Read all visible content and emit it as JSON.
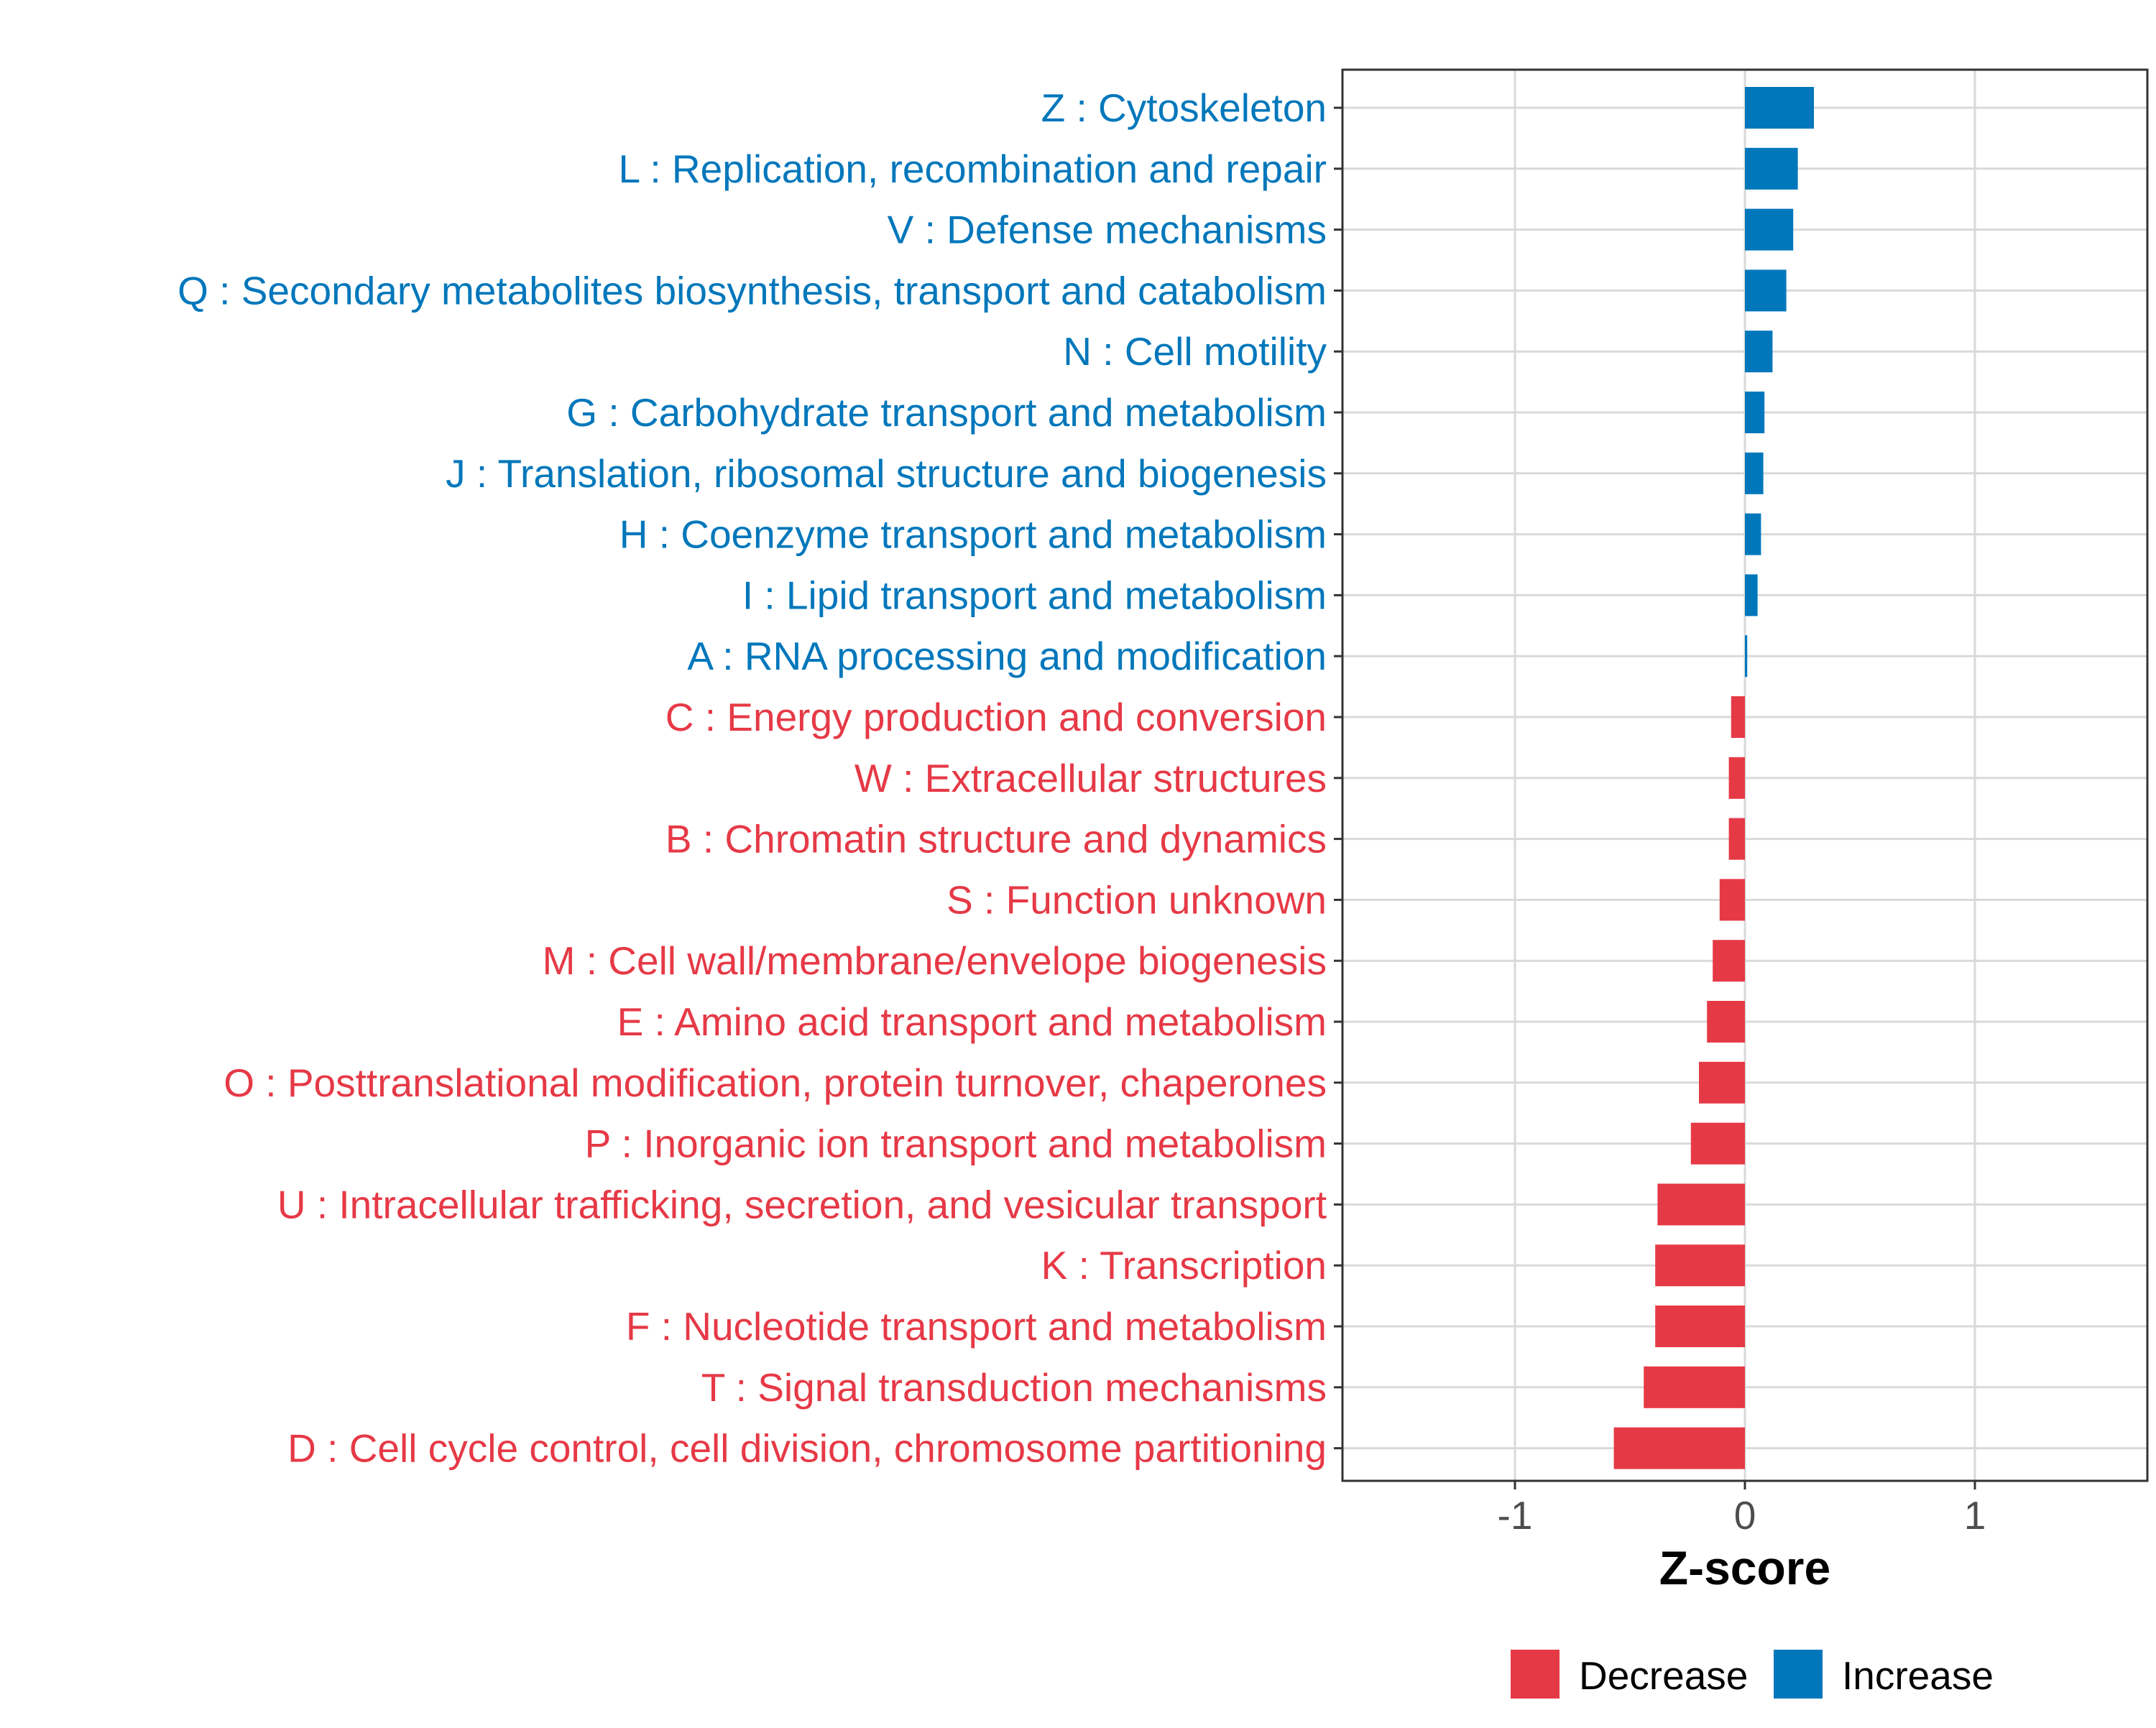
{
  "chart_data": {
    "type": "bar",
    "orientation": "horizontal",
    "xlabel": "Z-score",
    "ylabel": "",
    "xlim": [
      -1.75,
      1.75
    ],
    "x_ticks": [
      -1,
      0,
      1
    ],
    "x_tick_labels": [
      "-1",
      "0",
      "1"
    ],
    "grid": true,
    "legend_position": "bottom",
    "colors": {
      "Decrease": "#E63946",
      "Increase": "#0077BB"
    },
    "legend": [
      {
        "label": "Decrease",
        "color": "#E63946"
      },
      {
        "label": "Increase",
        "color": "#0077BB"
      }
    ],
    "categories": [
      "Z : Cytoskeleton",
      "L : Replication, recombination and repair",
      "V : Defense mechanisms",
      "Q : Secondary metabolites biosynthesis, transport and catabolism",
      "N : Cell motility",
      "G : Carbohydrate transport and metabolism",
      "J : Translation, ribosomal structure and biogenesis",
      "H : Coenzyme transport and metabolism",
      "I : Lipid transport and metabolism",
      "A : RNA processing and modification",
      "C : Energy production and conversion",
      "W : Extracellular structures",
      "B : Chromatin structure and dynamics",
      "S : Function unknown",
      "M : Cell wall/membrane/envelope biogenesis",
      "E : Amino acid transport and metabolism",
      "O : Posttranslational modification, protein turnover, chaperones",
      "P : Inorganic ion transport and metabolism",
      "U : Intracellular trafficking, secretion, and vesicular transport",
      "K : Transcription",
      "F : Nucleotide transport and metabolism",
      "T : Signal transduction mechanisms",
      "D : Cell cycle control, cell division, chromosome partitioning"
    ],
    "values": [
      0.3,
      0.23,
      0.21,
      0.18,
      0.12,
      0.085,
      0.08,
      0.07,
      0.055,
      0.01,
      -0.06,
      -0.07,
      -0.07,
      -0.11,
      -0.14,
      -0.165,
      -0.2,
      -0.235,
      -0.38,
      -0.39,
      -0.39,
      -0.44,
      -0.57
    ],
    "direction": [
      "Increase",
      "Increase",
      "Increase",
      "Increase",
      "Increase",
      "Increase",
      "Increase",
      "Increase",
      "Increase",
      "Increase",
      "Decrease",
      "Decrease",
      "Decrease",
      "Decrease",
      "Decrease",
      "Decrease",
      "Decrease",
      "Decrease",
      "Decrease",
      "Decrease",
      "Decrease",
      "Decrease",
      "Decrease"
    ]
  }
}
